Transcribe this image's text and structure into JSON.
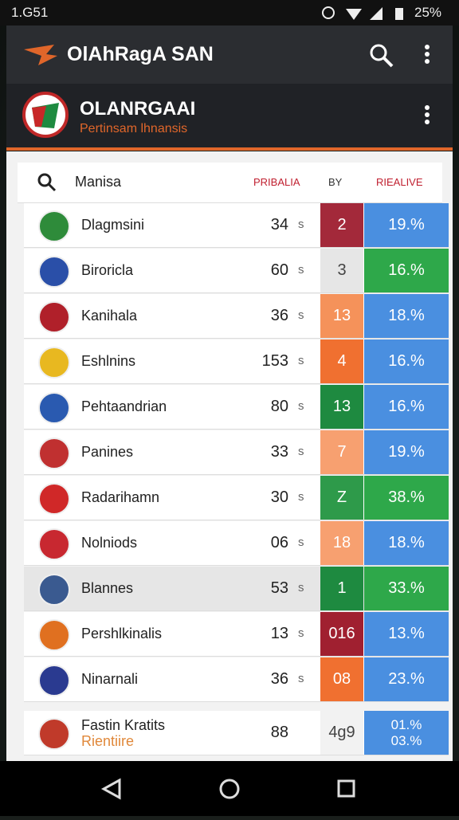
{
  "status_bar": {
    "time": "1.G51",
    "battery": "25%"
  },
  "app_bar": {
    "title": "OlAhRagA SAN"
  },
  "header": {
    "title": "OLANRGAAI",
    "subtitle": "Pertinsam lhnansis"
  },
  "table": {
    "columns": [
      "Manisa",
      "PRIBALIA",
      "BY",
      "RIEALIVE"
    ],
    "rows": [
      {
        "name": "Dlagmsini",
        "value": "34",
        "unit": "s",
        "badge": "2",
        "badge_color": "#a3293a",
        "pct": "19.%",
        "pct_color": "#4a8fe0",
        "icon_color": "#2e8b3a"
      },
      {
        "name": "Biroricla",
        "value": "60",
        "unit": "s",
        "badge": "3",
        "badge_color": "#e6e6e6",
        "pct": "16.%",
        "pct_color": "#2ea84a",
        "icon_color": "#2a4fa8"
      },
      {
        "name": "Kanihala",
        "value": "36",
        "unit": "s",
        "badge": "13",
        "badge_color": "#f5925a",
        "pct": "18.%",
        "pct_color": "#4a8fe0",
        "icon_color": "#b0202a"
      },
      {
        "name": "Eshlnins",
        "value": "153",
        "unit": "s",
        "badge": "4",
        "badge_color": "#f07030",
        "pct": "16.%",
        "pct_color": "#4a8fe0",
        "icon_color": "#e8b820"
      },
      {
        "name": "Pehtaandrian",
        "value": "80",
        "unit": "s",
        "badge": "13",
        "badge_color": "#1e8a40",
        "pct": "16.%",
        "pct_color": "#4a8fe0",
        "icon_color": "#2a5ab0"
      },
      {
        "name": "Panines",
        "value": "33",
        "unit": "s",
        "badge": "7",
        "badge_color": "#f7a070",
        "pct": "19.%",
        "pct_color": "#4a8fe0",
        "icon_color": "#c03030"
      },
      {
        "name": "Radarihamn",
        "value": "30",
        "unit": "s",
        "badge": "Z",
        "badge_color": "#2e9a4a",
        "pct": "38.%",
        "pct_color": "#2ea84a",
        "icon_color": "#d02828"
      },
      {
        "name": "Nolniods",
        "value": "06",
        "unit": "s",
        "badge": "18",
        "badge_color": "#f7a070",
        "pct": "18.%",
        "pct_color": "#4a8fe0",
        "icon_color": "#c82830"
      },
      {
        "name": "Blannes",
        "value": "53",
        "unit": "s",
        "badge": "1",
        "badge_color": "#1e8a40",
        "pct": "33.%",
        "pct_color": "#2ea84a",
        "icon_color": "#3a5a90"
      },
      {
        "name": "Pershlkinalis",
        "value": "13",
        "unit": "s",
        "badge": "016",
        "badge_color": "#a02030",
        "pct": "13.%",
        "pct_color": "#4a8fe0",
        "icon_color": "#e07020"
      },
      {
        "name": "Ninarnali",
        "value": "36",
        "unit": "s",
        "badge": "08",
        "badge_color": "#f07030",
        "pct": "23.%",
        "pct_color": "#4a8fe0",
        "icon_color": "#2a3a90"
      },
      {
        "name": "Fastin Kratits",
        "subname": "Rientiire",
        "value": "88",
        "badge": "4g9",
        "badge_color": "#f2f2f2",
        "pct": "01.%",
        "pct2": "03.%",
        "pct_color": "#4a8fe0",
        "icon_color": "#c03a2a"
      }
    ]
  }
}
